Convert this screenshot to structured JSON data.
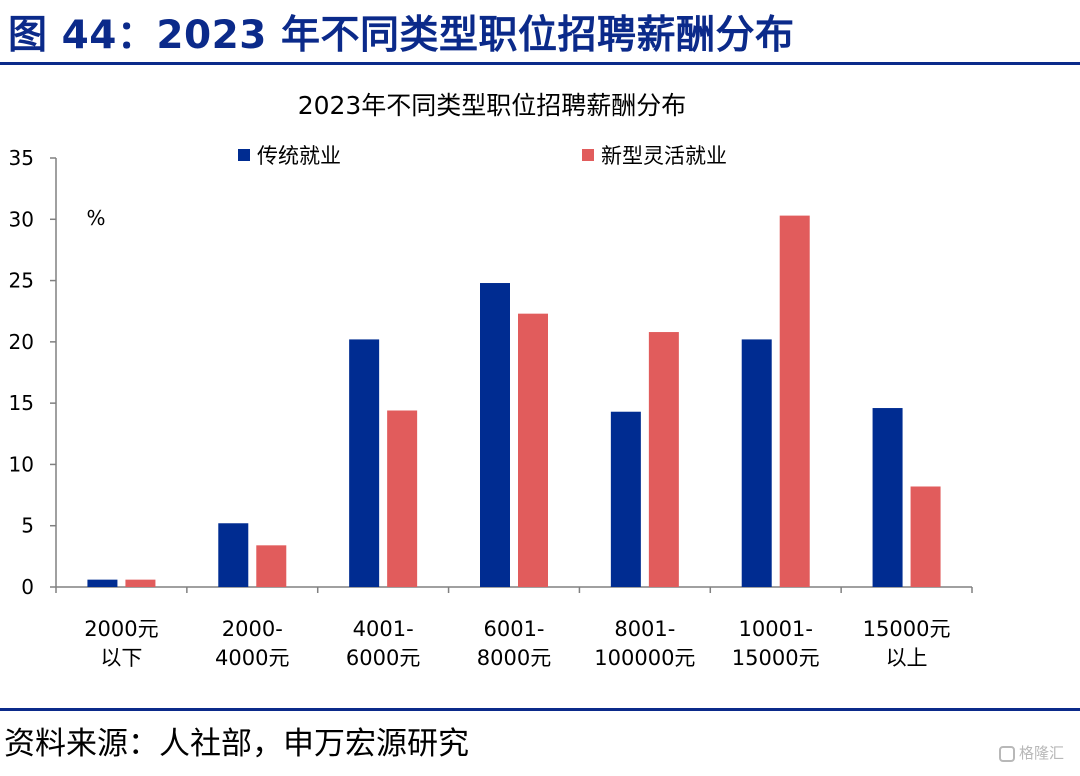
{
  "figure": {
    "title": "图 44：2023 年不同类型职位招聘薪酬分布",
    "source": "资料来源：人社部，申万宏源研究",
    "watermark": "格隆汇"
  },
  "colors": {
    "brand": "#0b2a8a",
    "series_traditional": "#002c91",
    "series_new": "#e15c5c",
    "axis": "#808080"
  },
  "chart_data": {
    "type": "bar",
    "title": "2023年不同类型职位招聘薪酬分布",
    "unit_label": "%",
    "ylim": [
      0,
      35
    ],
    "yticks": [
      0,
      5,
      10,
      15,
      20,
      25,
      30,
      35
    ],
    "grid": false,
    "legend_position": "top",
    "categories": [
      [
        "2000元",
        "以下"
      ],
      [
        "2000-",
        "4000元"
      ],
      [
        "4001-",
        "6000元"
      ],
      [
        "6001-",
        "8000元"
      ],
      [
        "8001-",
        "100000元"
      ],
      [
        "10001-",
        "15000元"
      ],
      [
        "15000元",
        "以上"
      ]
    ],
    "series": [
      {
        "name": "传统就业",
        "color": "#002c91",
        "values": [
          0.6,
          5.2,
          20.2,
          24.8,
          14.3,
          20.2,
          14.6
        ]
      },
      {
        "name": "新型灵活就业",
        "color": "#e15c5c",
        "values": [
          0.6,
          3.4,
          14.4,
          22.3,
          20.8,
          30.3,
          8.2
        ]
      }
    ]
  }
}
